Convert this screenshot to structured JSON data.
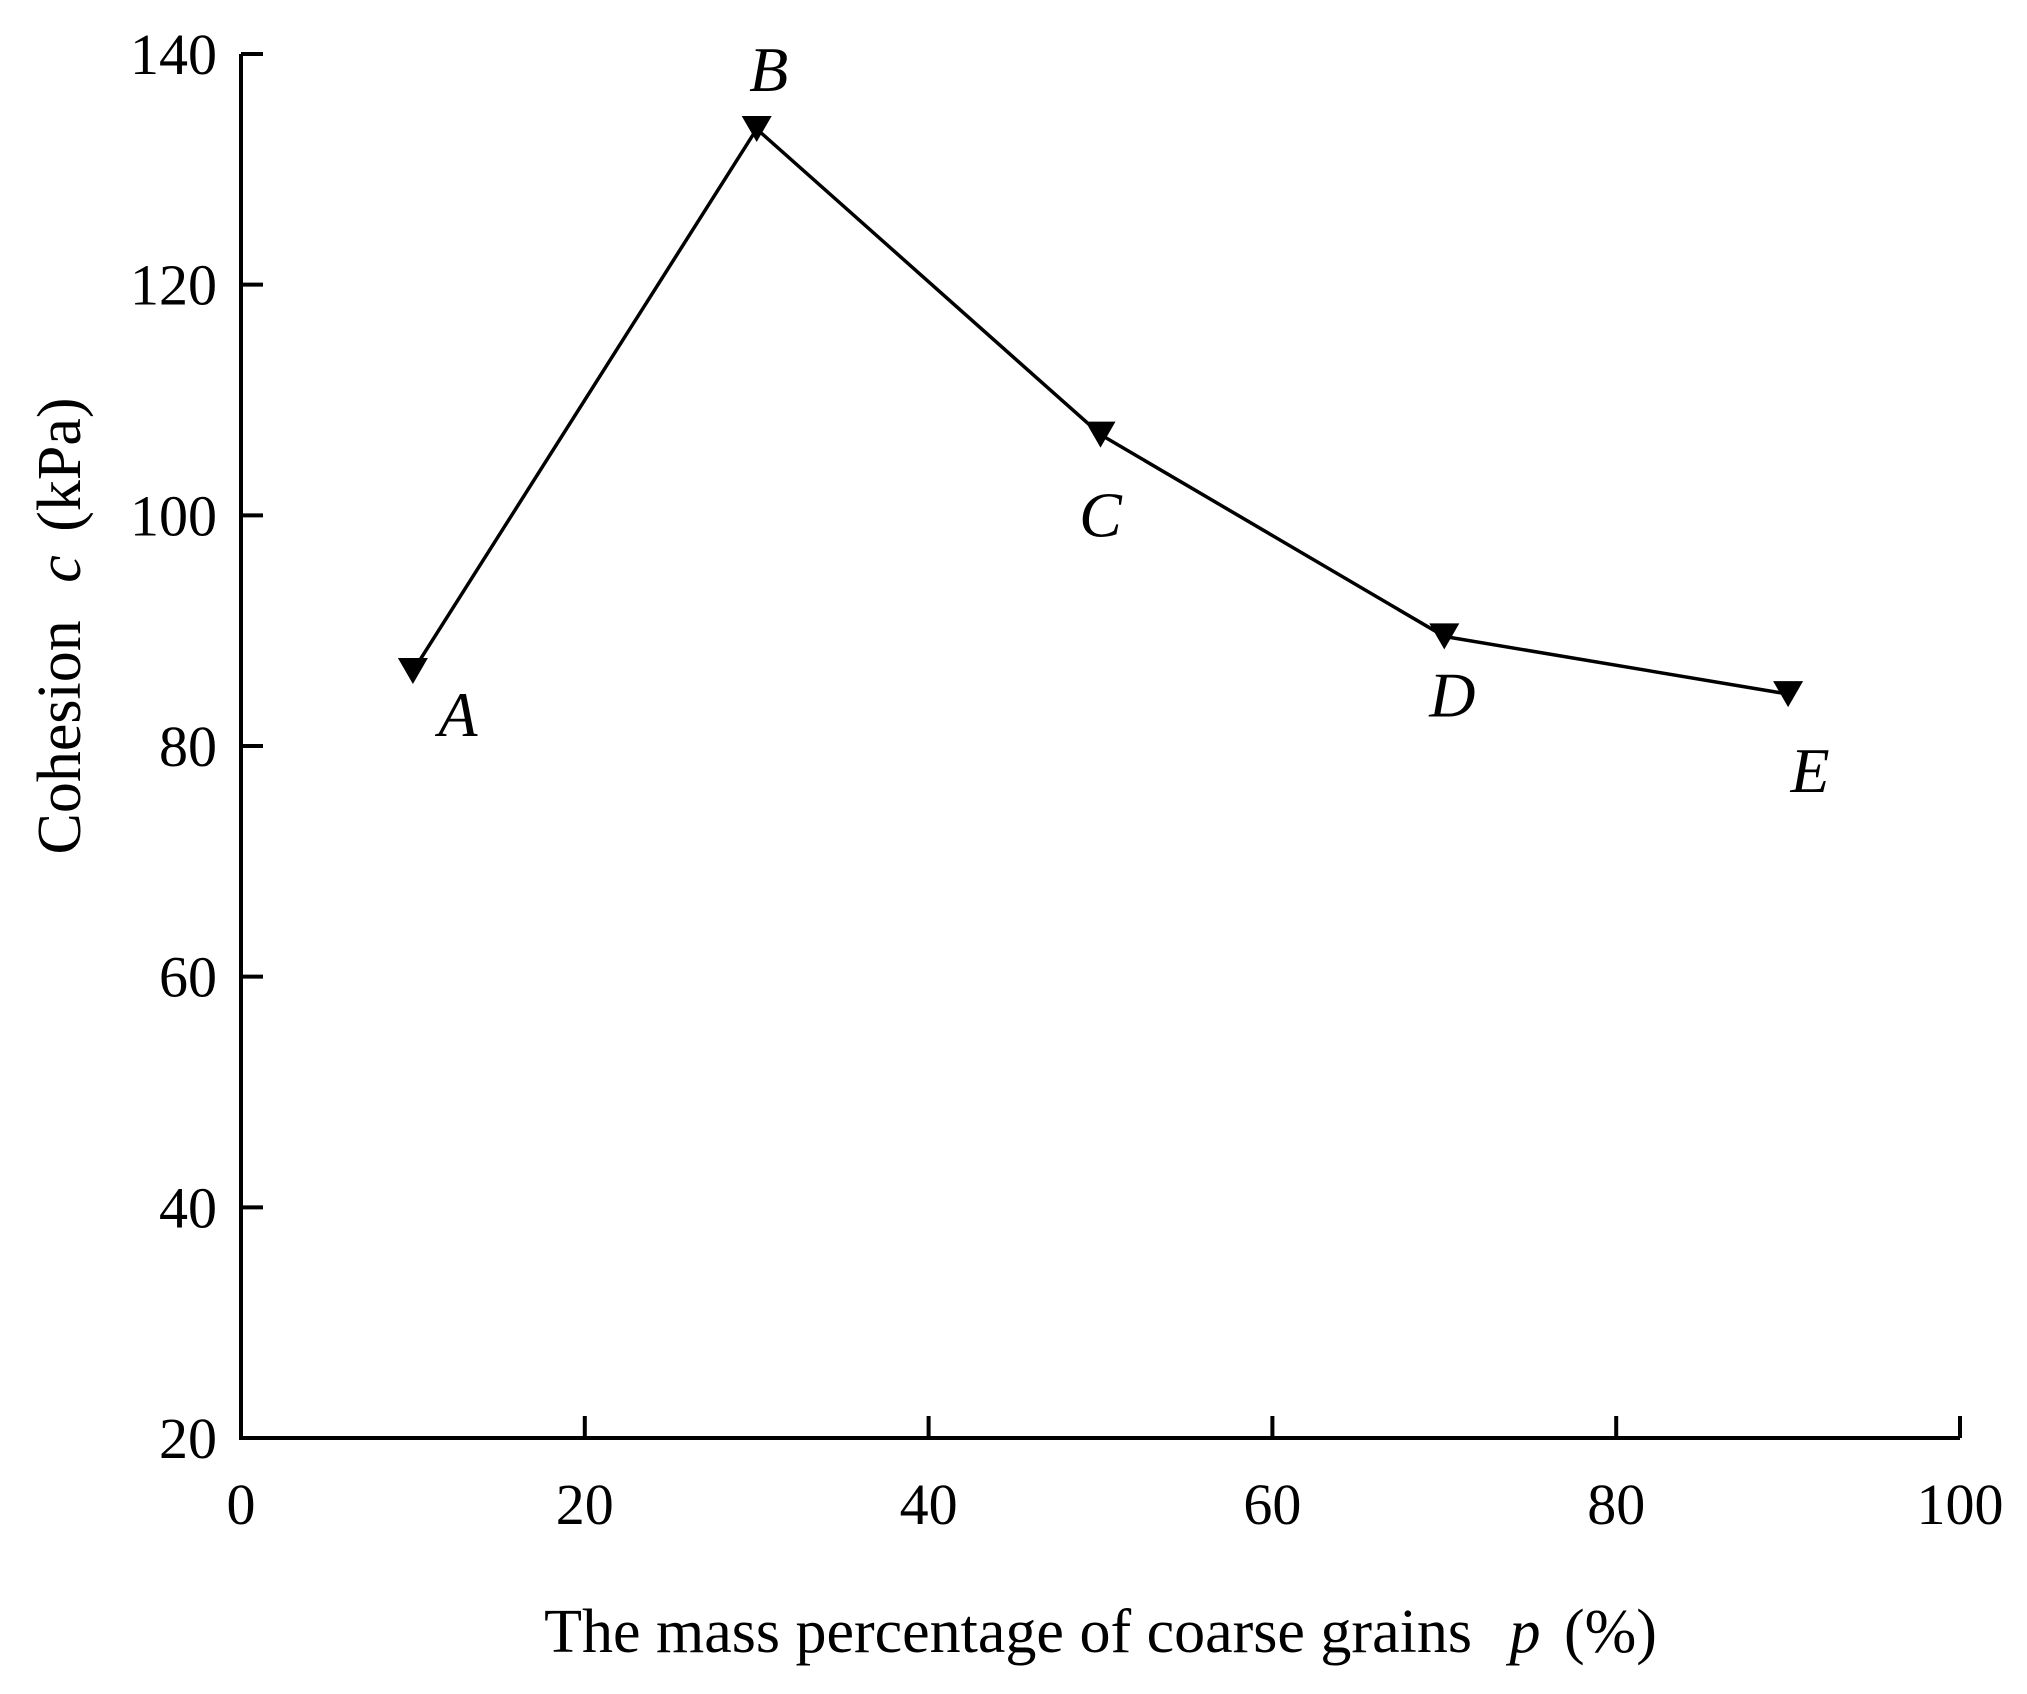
{
  "chart_data": {
    "type": "line",
    "title": "",
    "xlabel_text": "The mass percentage of coarse grains",
    "xlabel_symbol": "p",
    "xlabel_unit": "(%)",
    "ylabel_text": "Cohesion",
    "ylabel_symbol": "c",
    "ylabel_unit": "(kPa)",
    "xlim": [
      0,
      100
    ],
    "ylim": [
      20,
      140
    ],
    "xticks": [
      0,
      20,
      40,
      60,
      80,
      100
    ],
    "yticks": [
      20,
      40,
      60,
      80,
      100,
      120,
      140
    ],
    "marker": "triangle-down",
    "series": [
      {
        "name": "Cohesion",
        "points": [
          {
            "label": "A",
            "x": 10,
            "y": 86.5
          },
          {
            "label": "B",
            "x": 30,
            "y": 133.5
          },
          {
            "label": "C",
            "x": 50,
            "y": 107
          },
          {
            "label": "D",
            "x": 70,
            "y": 89.5
          },
          {
            "label": "E",
            "x": 90,
            "y": 84.5
          }
        ]
      }
    ]
  }
}
